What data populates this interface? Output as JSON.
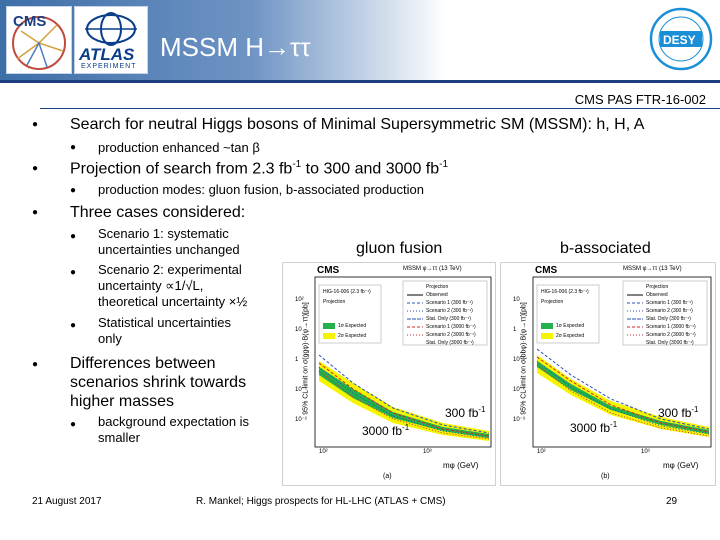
{
  "header": {
    "title": "MSSM H→ττ",
    "logo_cms_text": "CMS",
    "logo_atlas_text": "ATLAS",
    "logo_atlas_sub": "EXPERIMENT",
    "logo_desy_text": "DESY",
    "ref": "CMS PAS FTR-16-002"
  },
  "bullets": {
    "b1": "Search for neutral Higgs bosons of Minimal Supersymmetric SM (MSSM): h, H, A",
    "b1_sub": "production enhanced ~tan β",
    "b2_text": "Projection of search from 2.3 fb",
    "b2_sup1": "-1",
    "b2_mid": " to 300 and 3000 fb",
    "b2_sup2": "-1",
    "b2_sub": "production modes: gluon fusion, b-associated production",
    "b3": "Three cases considered:",
    "b3_s1": "Scenario 1: systematic uncertainties unchanged",
    "b3_s2": "Scenario 2: experimental uncertainty ∝1/√L, theoretical uncertainty ×½",
    "b3_s3": "Statistical uncertainties only",
    "b4": "Differences between scenarios shrink towards higher masses",
    "b4_sub": "background expectation is smaller"
  },
  "plots": {
    "left_title": "gluon fusion",
    "right_title": "b-associated",
    "lumi_300": "300 fb",
    "lumi_3000": "3000 fb",
    "sup": "-1",
    "left_cap": "(a)",
    "right_cap": "(b)",
    "cms": "CMS",
    "projection": "Projection",
    "left_header": "MSSM φ→ττ (13 TeV)",
    "right_header": "MSSM φ→ττ (13 TeV)",
    "left_ylabel": "95% CL limit on σ(ggφ)·B(φ→ττ)[pb]",
    "right_ylabel": "95% CL limit on σ(bbφ)·B(φ→ττ)[pb]",
    "xlabel": "mφ (GeV)",
    "left_tag": "HIG-16-006 (2.3 fb⁻¹)",
    "right_tag": "HIG-16-006 (2.3 fb⁻¹)",
    "legend": [
      "Projection",
      "Observed",
      "Scenario 1 (300 fb⁻¹)",
      "Scenario 2 (300 fb⁻¹)",
      "Stat. Only (300 fb⁻¹)",
      "Scenario 1 (3000 fb⁻¹)",
      "Scenario 2 (3000 fb⁻¹)",
      "Stat. Only (3000 fb⁻¹)"
    ],
    "band_1s": "1σ Expected",
    "band_2s": "2σ Expected",
    "yticks": [
      "10²",
      "10",
      "1",
      "10⁻¹",
      "10⁻²",
      "10⁻³"
    ],
    "xticks": [
      "10²",
      "10³"
    ]
  },
  "footer": {
    "date": "21 August 2017",
    "center": "R. Mankel; Higgs prospects for HL-LHC (ATLAS + CMS)",
    "page": "29"
  },
  "colors": {
    "header_blue": "#3d6fa8",
    "rule_blue": "#1b3f80",
    "band_green": "#22b14c",
    "band_yellow": "#f5f500",
    "curve_blue": "#2a52be",
    "curve_red": "#d62728"
  }
}
